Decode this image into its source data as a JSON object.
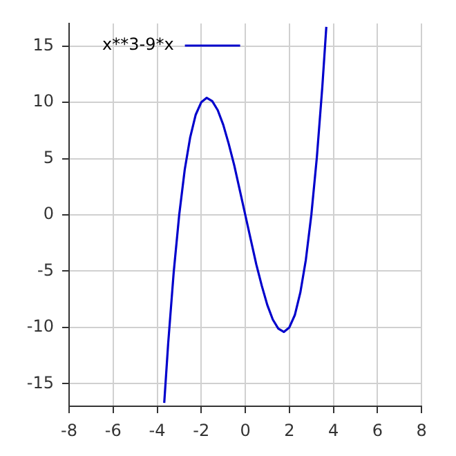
{
  "chart_data": {
    "type": "line",
    "legend": "top left",
    "grid": true,
    "marker": "none",
    "line_style": "solid",
    "xlim": [
      -8,
      8
    ],
    "xticks": [
      -8,
      -6,
      -4,
      -2,
      0,
      2,
      4,
      6,
      8
    ],
    "ylim": [
      -17,
      17
    ],
    "yticks": [
      -15,
      -10,
      -5,
      0,
      5,
      10,
      15
    ],
    "series": [
      {
        "name": "x**3-9*x",
        "color": "#0000cc",
        "x": [
          -3.68,
          -3.5,
          -3.25,
          -3,
          -2.75,
          -2.5,
          -2.25,
          -2,
          -1.75,
          -1.5,
          -1.25,
          -1,
          -0.75,
          -0.5,
          -0.25,
          0,
          0.25,
          0.5,
          0.75,
          1,
          1.25,
          1.5,
          1.75,
          2,
          2.25,
          2.5,
          2.75,
          3,
          3.25,
          3.5,
          3.68
        ],
        "values": [
          -16.7,
          -11.4,
          -5.1,
          0,
          4,
          6.9,
          8.9,
          10,
          10.4,
          10.1,
          9.3,
          8,
          6.3,
          4.4,
          2.2,
          0,
          -2.2,
          -4.4,
          -6.3,
          -8,
          -9.3,
          -10.1,
          -10.4,
          -10,
          -8.9,
          -6.9,
          -4,
          0,
          5.1,
          11.4,
          16.7
        ]
      }
    ]
  }
}
